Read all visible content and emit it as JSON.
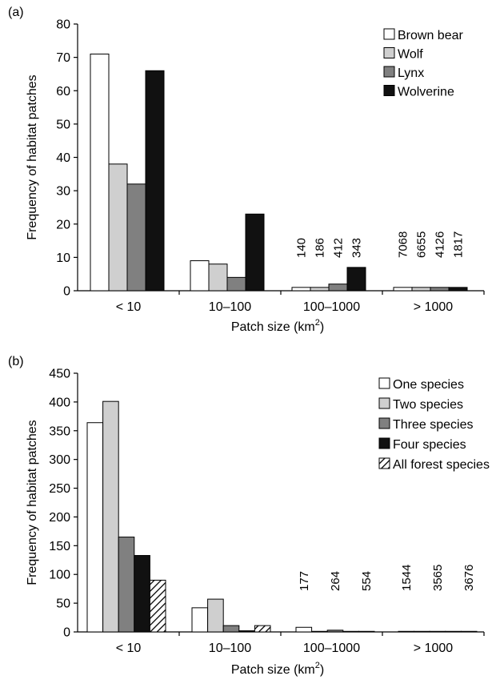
{
  "chart_data": [
    {
      "panel": "(a)",
      "type": "bar",
      "categories": [
        "< 10",
        "10–100",
        "100–1000",
        "> 1000"
      ],
      "xlabel": "Patch size (km",
      "xlabel_sup": "2",
      "xlabel_end": ")",
      "ylabel": "Frequency of habitat patches",
      "ylim": [
        0,
        80
      ],
      "yticks": [
        0,
        10,
        20,
        30,
        40,
        50,
        60,
        70,
        80
      ],
      "legend_position": "top-right",
      "series": [
        {
          "name": "Brown bear",
          "values": [
            71,
            9,
            1,
            1
          ],
          "color": "#ffffff",
          "pattern": "solid"
        },
        {
          "name": "Wolf",
          "values": [
            38,
            8,
            1,
            1
          ],
          "color": "#cfcfcf",
          "pattern": "solid"
        },
        {
          "name": "Lynx",
          "values": [
            32,
            4,
            2,
            1
          ],
          "color": "#808080",
          "pattern": "solid"
        },
        {
          "name": "Wolverine",
          "values": [
            66,
            23,
            7,
            1
          ],
          "color": "#111111",
          "pattern": "solid"
        }
      ],
      "annotations": [
        {
          "category": 2,
          "series": 0,
          "text": "140"
        },
        {
          "category": 2,
          "series": 1,
          "text": "186"
        },
        {
          "category": 2,
          "series": 2,
          "text": "412"
        },
        {
          "category": 2,
          "series": 3,
          "text": "343"
        },
        {
          "category": 3,
          "series": 0,
          "text": "7068"
        },
        {
          "category": 3,
          "series": 1,
          "text": "6655"
        },
        {
          "category": 3,
          "series": 2,
          "text": "4126"
        },
        {
          "category": 3,
          "series": 3,
          "text": "1817"
        }
      ]
    },
    {
      "panel": "(b)",
      "type": "bar",
      "categories": [
        "< 10",
        "10–100",
        "100–1000",
        "> 1000"
      ],
      "xlabel": "Patch size (km",
      "xlabel_sup": "2",
      "xlabel_end": ")",
      "ylabel": "Frequency of habitat patches",
      "ylim": [
        0,
        450
      ],
      "yticks": [
        0,
        50,
        100,
        150,
        200,
        250,
        300,
        350,
        400,
        450
      ],
      "legend_position": "top-right",
      "series": [
        {
          "name": "One species",
          "values": [
            364,
            42,
            8,
            1
          ],
          "color": "#ffffff",
          "pattern": "solid"
        },
        {
          "name": "Two species",
          "values": [
            401,
            57,
            1,
            1
          ],
          "color": "#cfcfcf",
          "pattern": "solid"
        },
        {
          "name": "Three species",
          "values": [
            165,
            11,
            3,
            1
          ],
          "color": "#808080",
          "pattern": "solid"
        },
        {
          "name": "Four species",
          "values": [
            133,
            2,
            1,
            1
          ],
          "color": "#111111",
          "pattern": "solid"
        },
        {
          "name": "All forest species",
          "values": [
            90,
            11,
            1,
            1
          ],
          "color": "#ffffff",
          "pattern": "hatch"
        }
      ],
      "annotations": [
        {
          "category": 2,
          "series": 0,
          "text": "177"
        },
        {
          "category": 2,
          "series": 2,
          "text": "264"
        },
        {
          "category": 2,
          "series": 4,
          "text": "554"
        },
        {
          "category": 3,
          "series": 0,
          "text": "1544"
        },
        {
          "category": 3,
          "series": 2,
          "text": "3565"
        },
        {
          "category": 3,
          "series": 4,
          "text": "3676"
        }
      ]
    }
  ]
}
